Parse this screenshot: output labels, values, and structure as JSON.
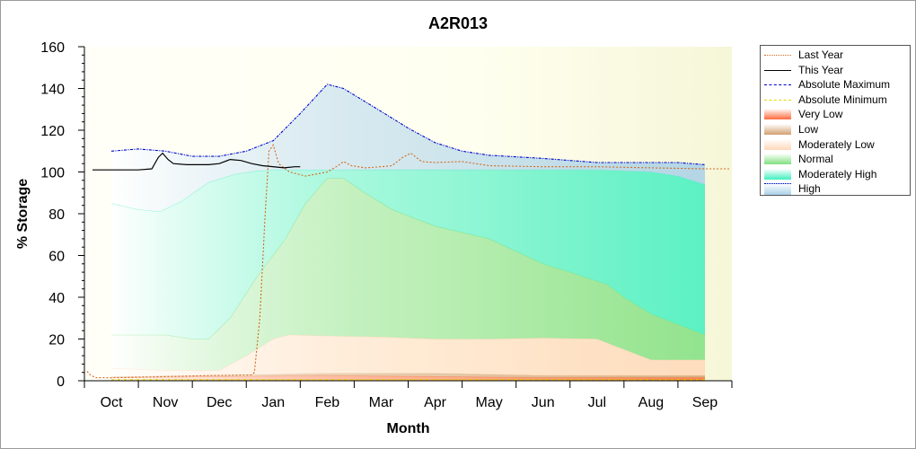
{
  "chart_data": {
    "type": "area",
    "title": "A2R013",
    "xlabel": "Month",
    "ylabel": "% Storage",
    "ylim": [
      0,
      160
    ],
    "yticks": [
      0,
      20,
      40,
      60,
      80,
      100,
      120,
      140,
      160
    ],
    "categories": [
      "Oct",
      "Nov",
      "Dec",
      "Jan",
      "Feb",
      "Mar",
      "Apr",
      "May",
      "Jun",
      "Jul",
      "Aug",
      "Sep"
    ],
    "grid": false,
    "legend_position": "right",
    "series": [
      {
        "name": "Last Year",
        "style": "dotted-line",
        "color": "#d2691e",
        "points": [
          [
            -0.45,
            4.5
          ],
          [
            -0.4,
            3
          ],
          [
            -0.3,
            1.5
          ],
          [
            0,
            1.4
          ],
          [
            1,
            2
          ],
          [
            1.8,
            2.5
          ],
          [
            2.6,
            2.8
          ],
          [
            2.65,
            4
          ],
          [
            2.75,
            30
          ],
          [
            2.85,
            80
          ],
          [
            2.92,
            110
          ],
          [
            3.0,
            113
          ],
          [
            3.1,
            104
          ],
          [
            3.3,
            100
          ],
          [
            3.6,
            98
          ],
          [
            4.0,
            100
          ],
          [
            4.2,
            103
          ],
          [
            4.3,
            105
          ],
          [
            4.45,
            103
          ],
          [
            4.7,
            102
          ],
          [
            5.0,
            102.5
          ],
          [
            5.2,
            103
          ],
          [
            5.4,
            107
          ],
          [
            5.55,
            109
          ],
          [
            5.75,
            105
          ],
          [
            6.0,
            104.5
          ],
          [
            6.5,
            105
          ],
          [
            7.0,
            103
          ],
          [
            8.0,
            102.5
          ],
          [
            9.0,
            102.5
          ],
          [
            10.0,
            102
          ],
          [
            11.0,
            101.5
          ],
          [
            11.45,
            101.5
          ]
        ]
      },
      {
        "name": "This Year",
        "style": "solid-line",
        "color": "#000000",
        "points": [
          [
            -0.35,
            101
          ],
          [
            0,
            101
          ],
          [
            0.5,
            101
          ],
          [
            0.75,
            101.5
          ],
          [
            0.87,
            107
          ],
          [
            0.95,
            109
          ],
          [
            1.05,
            106
          ],
          [
            1.15,
            104
          ],
          [
            1.4,
            103.5
          ],
          [
            1.8,
            103.5
          ],
          [
            2.0,
            104
          ],
          [
            2.2,
            106
          ],
          [
            2.4,
            105.5
          ],
          [
            2.6,
            104
          ],
          [
            2.8,
            103
          ],
          [
            3.2,
            102
          ],
          [
            3.4,
            102.5
          ],
          [
            3.5,
            102.5
          ]
        ]
      },
      {
        "name": "Absolute Maximum",
        "style": "dash-dot-line",
        "color": "#0000cc",
        "points": [
          [
            0,
            110
          ],
          [
            0.5,
            111
          ],
          [
            1.0,
            110
          ],
          [
            1.5,
            107.5
          ],
          [
            2.0,
            107.5
          ],
          [
            2.5,
            110
          ],
          [
            3.0,
            115
          ],
          [
            3.5,
            128
          ],
          [
            4.0,
            142
          ],
          [
            4.3,
            140
          ],
          [
            5.0,
            129
          ],
          [
            5.5,
            121
          ],
          [
            6.0,
            114
          ],
          [
            6.5,
            110
          ],
          [
            7.0,
            108
          ],
          [
            8.0,
            106.5
          ],
          [
            8.5,
            105.5
          ],
          [
            9.0,
            104.5
          ],
          [
            10.0,
            104.5
          ],
          [
            10.5,
            104.5
          ],
          [
            11.0,
            103.5
          ]
        ]
      },
      {
        "name": "Absolute Minimum",
        "style": "dash-dot-line",
        "color": "#e6d800",
        "points": [
          [
            0,
            0.5
          ],
          [
            11,
            0.5
          ]
        ]
      },
      {
        "name": "Very Low",
        "style": "band",
        "color": "#ff6a3d",
        "points": [
          [
            0,
            1.5
          ],
          [
            2,
            2
          ],
          [
            4,
            2.5
          ],
          [
            6,
            2
          ],
          [
            8,
            1.5
          ],
          [
            11,
            1.5
          ]
        ]
      },
      {
        "name": "Low",
        "style": "band",
        "color": "#d2a070",
        "points": [
          [
            0,
            2
          ],
          [
            2,
            2.5
          ],
          [
            4,
            3.5
          ],
          [
            6,
            3.5
          ],
          [
            8,
            2.5
          ],
          [
            11,
            2.5
          ]
        ]
      },
      {
        "name": "Moderately Low",
        "style": "band",
        "color": "#ffd7b8",
        "points": [
          [
            0,
            6
          ],
          [
            1,
            5
          ],
          [
            2,
            5
          ],
          [
            2.5,
            12
          ],
          [
            3.0,
            20
          ],
          [
            3.3,
            22
          ],
          [
            4.0,
            21.5
          ],
          [
            5.0,
            21
          ],
          [
            6.0,
            20
          ],
          [
            7.0,
            20
          ],
          [
            8.0,
            20.5
          ],
          [
            9.0,
            20
          ],
          [
            9.5,
            15
          ],
          [
            10.0,
            10
          ],
          [
            11.0,
            10
          ]
        ]
      },
      {
        "name": "Normal",
        "style": "band",
        "color": "#80e080",
        "points": [
          [
            0,
            22
          ],
          [
            1,
            22
          ],
          [
            1.5,
            20
          ],
          [
            1.8,
            20
          ],
          [
            2.2,
            30
          ],
          [
            2.7,
            50
          ],
          [
            3.2,
            67
          ],
          [
            3.6,
            85
          ],
          [
            4.0,
            97
          ],
          [
            4.3,
            97
          ],
          [
            4.7,
            90
          ],
          [
            5.2,
            82
          ],
          [
            6.0,
            74
          ],
          [
            7.0,
            68
          ],
          [
            8.0,
            56
          ],
          [
            8.5,
            52
          ],
          [
            9.2,
            46
          ],
          [
            9.5,
            40
          ],
          [
            10.0,
            32
          ],
          [
            10.5,
            27
          ],
          [
            11.0,
            22
          ]
        ]
      },
      {
        "name": "Moderately High",
        "style": "band",
        "color": "#40f0c0",
        "points": [
          [
            0,
            85
          ],
          [
            0.5,
            82
          ],
          [
            0.9,
            81
          ],
          [
            1.3,
            86
          ],
          [
            1.8,
            95
          ],
          [
            2.3,
            99
          ],
          [
            2.7,
            100.5
          ],
          [
            3.0,
            101
          ],
          [
            4.0,
            101
          ],
          [
            5.0,
            101
          ],
          [
            6.0,
            101
          ],
          [
            7.0,
            101
          ],
          [
            8.0,
            101
          ],
          [
            9.0,
            101
          ],
          [
            10.0,
            100
          ],
          [
            10.5,
            98
          ],
          [
            11.0,
            94
          ]
        ]
      },
      {
        "name": "High",
        "style": "band",
        "color": "#a8d0e8",
        "points": [
          [
            0,
            110
          ],
          [
            0.5,
            111
          ],
          [
            1.0,
            110
          ],
          [
            1.5,
            107.5
          ],
          [
            2.0,
            107.5
          ],
          [
            2.5,
            110
          ],
          [
            3.0,
            115
          ],
          [
            3.5,
            128
          ],
          [
            4.0,
            142
          ],
          [
            4.3,
            140
          ],
          [
            5.0,
            129
          ],
          [
            5.5,
            121
          ],
          [
            6.0,
            114
          ],
          [
            6.5,
            110
          ],
          [
            7.0,
            108
          ],
          [
            8.0,
            106.5
          ],
          [
            8.5,
            105.5
          ],
          [
            9.0,
            104.5
          ],
          [
            10.0,
            104.5
          ],
          [
            10.5,
            104.5
          ],
          [
            11.0,
            103.5
          ]
        ]
      }
    ]
  },
  "colors": {
    "plot_background": "#fffff0",
    "plot_background_edge": "#f6f6d8"
  }
}
